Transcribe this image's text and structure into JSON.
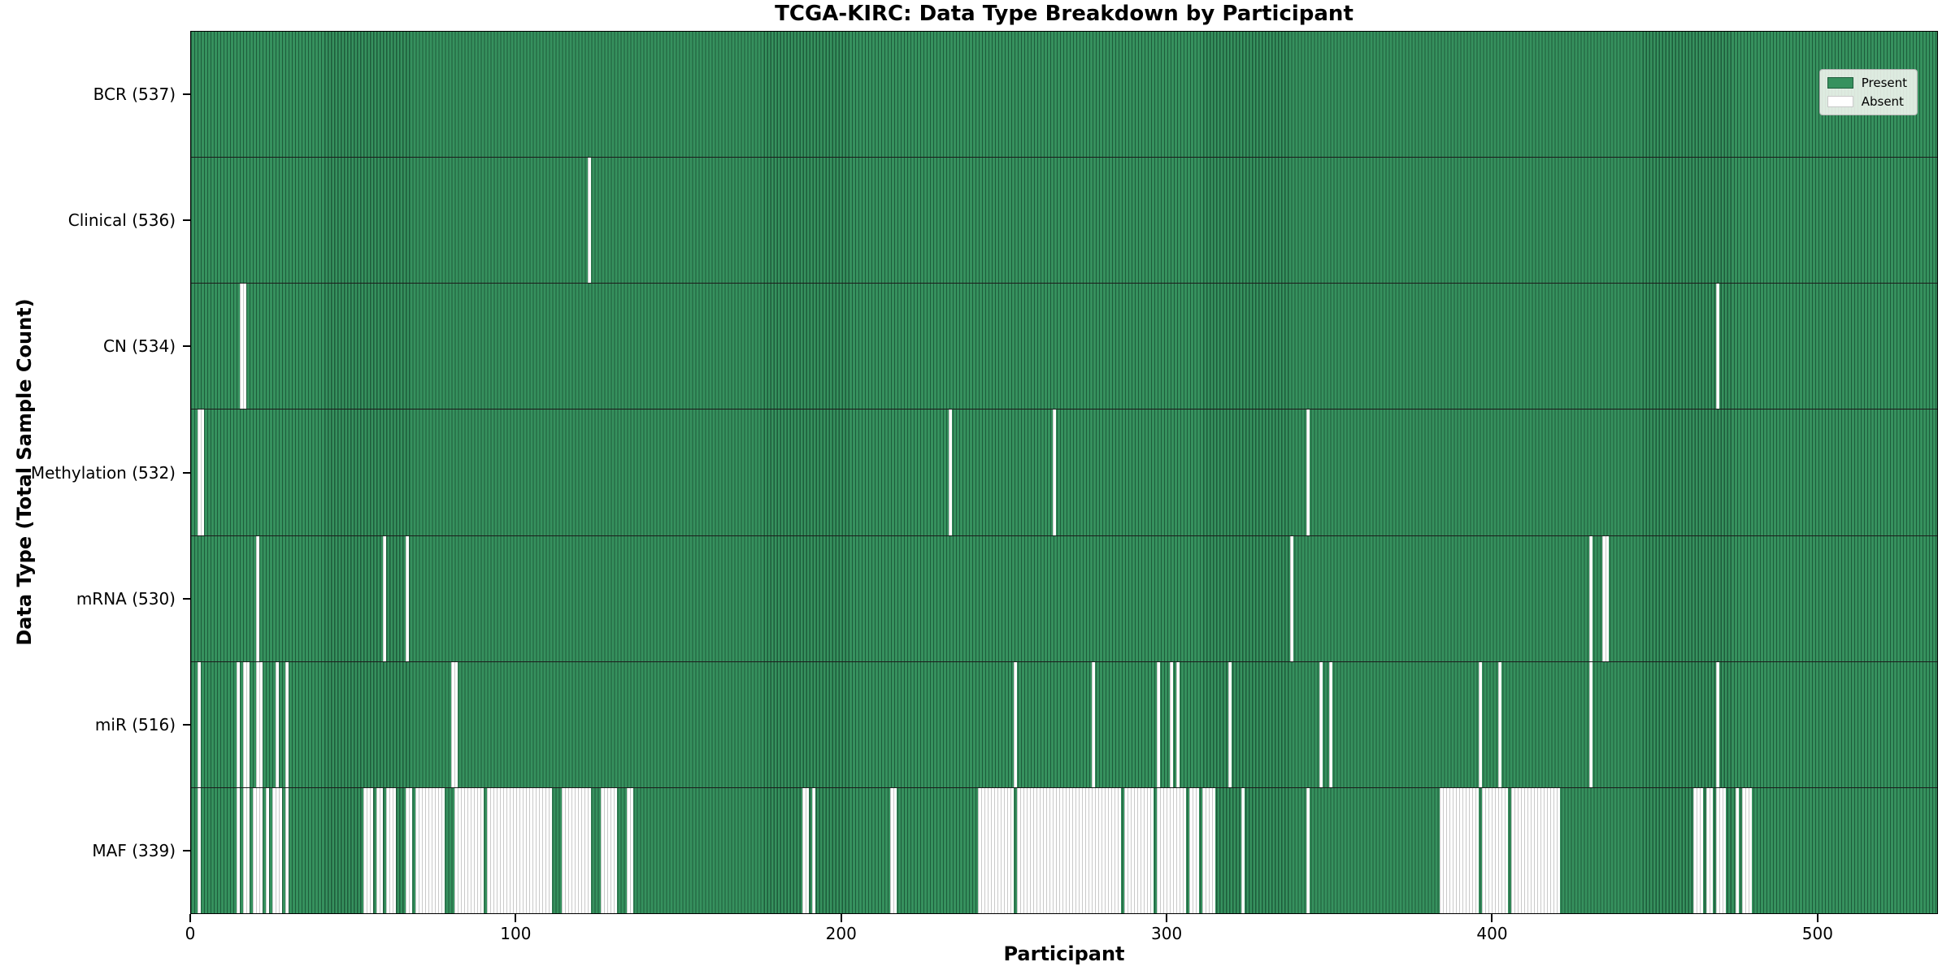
{
  "title": "TCGA-KIRC: Data Type Breakdown by Participant",
  "axes": {
    "x_label": "Participant",
    "y_label": "Data Type (Total Sample Count)",
    "x_ticks": [
      0,
      100,
      200,
      300,
      400,
      500
    ],
    "x_max": 537
  },
  "legend": {
    "present_label": "Present",
    "absent_label": "Absent"
  },
  "colors": {
    "present_fill": "#36915e",
    "present_edge": "#1d5c3b",
    "absent_fill": "#ffffff",
    "absent_edge": "#c9c9c9",
    "row_divider": "#1c1c1c",
    "frame": "#000000"
  },
  "chart_data": {
    "type": "heatmap",
    "title": "TCGA-KIRC: Data Type Breakdown by Participant",
    "xlabel": "Participant",
    "ylabel": "Data Type (Total Sample Count)",
    "x_range": [
      0,
      537
    ],
    "n_participants": 537,
    "x_ticks": [
      0,
      100,
      200,
      300,
      400,
      500
    ],
    "grid": false,
    "legend_position": "upper right",
    "legend_entries": [
      "Present",
      "Absent"
    ],
    "categories": [
      "BCR (537)",
      "Clinical (536)",
      "CN (534)",
      "Methylation (532)",
      "mRNA (530)",
      "miR (516)",
      "MAF (339)"
    ],
    "rows": [
      {
        "label": "BCR",
        "total_present": 537,
        "tick_label": "BCR (537)",
        "absent_ranges": []
      },
      {
        "label": "Clinical",
        "total_present": 536,
        "tick_label": "Clinical (536)",
        "absent_ranges": [
          [
            122,
            122
          ]
        ]
      },
      {
        "label": "CN",
        "total_present": 534,
        "tick_label": "CN (534)",
        "absent_ranges": [
          [
            15,
            16
          ],
          [
            469,
            469
          ]
        ]
      },
      {
        "label": "Methylation",
        "total_present": 532,
        "tick_label": "Methylation (532)",
        "absent_ranges": [
          [
            2,
            3
          ],
          [
            233,
            233
          ],
          [
            265,
            265
          ],
          [
            343,
            343
          ]
        ]
      },
      {
        "label": "mRNA",
        "total_present": 530,
        "tick_label": "mRNA (530)",
        "absent_ranges": [
          [
            20,
            20
          ],
          [
            59,
            59
          ],
          [
            66,
            66
          ],
          [
            338,
            338
          ],
          [
            430,
            430
          ],
          [
            434,
            435
          ]
        ]
      },
      {
        "label": "miR",
        "total_present": 516,
        "tick_label": "miR (516)",
        "absent_ranges": [
          [
            2,
            2
          ],
          [
            14,
            14
          ],
          [
            16,
            17
          ],
          [
            20,
            21
          ],
          [
            26,
            26
          ],
          [
            29,
            29
          ],
          [
            80,
            81
          ],
          [
            253,
            253
          ],
          [
            277,
            277
          ],
          [
            297,
            297
          ],
          [
            301,
            301
          ],
          [
            303,
            303
          ],
          [
            319,
            319
          ],
          [
            347,
            347
          ],
          [
            350,
            350
          ],
          [
            396,
            396
          ],
          [
            402,
            402
          ],
          [
            430,
            430
          ],
          [
            469,
            469
          ]
        ]
      },
      {
        "label": "MAF",
        "total_present": 339,
        "tick_label": "MAF (339)",
        "absent_ranges": [
          [
            2,
            2
          ],
          [
            14,
            14
          ],
          [
            16,
            17
          ],
          [
            19,
            21
          ],
          [
            23,
            23
          ],
          [
            25,
            27
          ],
          [
            29,
            29
          ],
          [
            53,
            55
          ],
          [
            57,
            58
          ],
          [
            60,
            62
          ],
          [
            66,
            67
          ],
          [
            69,
            77
          ],
          [
            81,
            89
          ],
          [
            91,
            110
          ],
          [
            114,
            122
          ],
          [
            126,
            130
          ],
          [
            134,
            135
          ],
          [
            188,
            189
          ],
          [
            191,
            191
          ],
          [
            215,
            216
          ],
          [
            242,
            252
          ],
          [
            254,
            285
          ],
          [
            287,
            295
          ],
          [
            297,
            305
          ],
          [
            307,
            309
          ],
          [
            311,
            314
          ],
          [
            323,
            323
          ],
          [
            343,
            343
          ],
          [
            384,
            395
          ],
          [
            397,
            404
          ],
          [
            406,
            420
          ],
          [
            462,
            464
          ],
          [
            466,
            467
          ],
          [
            469,
            471
          ],
          [
            475,
            475
          ],
          [
            477,
            479
          ]
        ]
      }
    ]
  }
}
